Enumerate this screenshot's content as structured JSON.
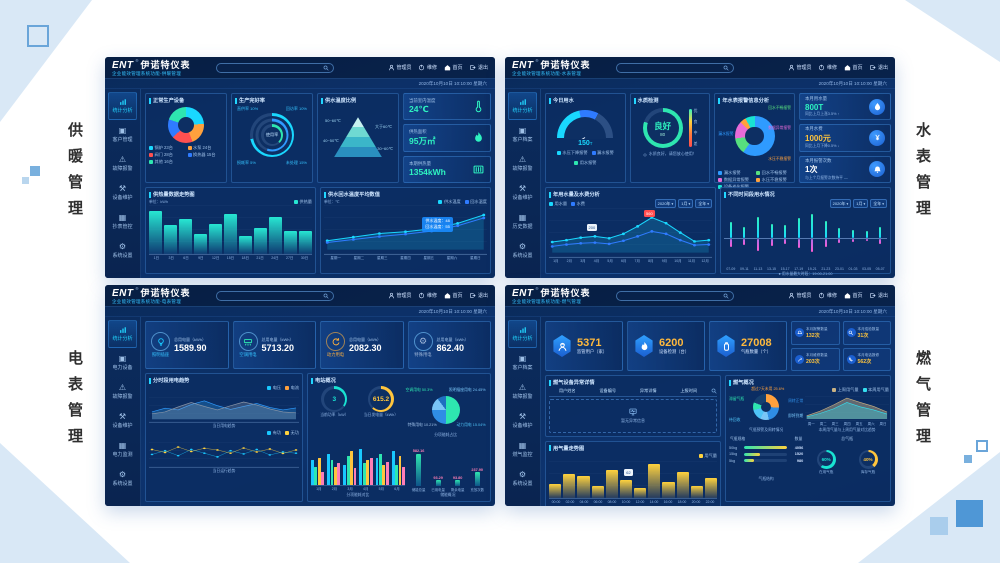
{
  "page": {
    "corner_labels": {
      "heating": "供暖管理",
      "water": "水表管理",
      "electric": "电表管理",
      "gas": "燃气管理"
    }
  },
  "common": {
    "logo": "ENT",
    "logo_mark": "®",
    "brand": "伊诺特仪表",
    "nav": {
      "admin": "管理员",
      "service": "维修",
      "home": "首页",
      "logout": "退出"
    },
    "datetime": "2020年10月10日  10:10:00  星期六"
  },
  "heating": {
    "subtitle": "企业能效管理系统功能-供暖管理",
    "sidebar": [
      "统计分析",
      "客户管理",
      "故障报警",
      "设备维护",
      "抄表管控",
      "系统设置"
    ],
    "device_donut": {
      "title": "正常生产设备",
      "slices": [
        {
          "label": "锅炉 23台",
          "v": 24,
          "color": "#19d8ff"
        },
        {
          "label": "水泵 24台",
          "v": 20,
          "color": "#ffa13d"
        },
        {
          "label": "阀门 28台",
          "v": 19,
          "color": "#ff5050"
        },
        {
          "label": "换热器 15台",
          "v": 17,
          "color": "#2f7bff"
        },
        {
          "label": "其他 16台",
          "v": 20,
          "color": "#2ee6b0"
        }
      ]
    },
    "rate": {
      "title": "生产完好率",
      "center": "使用率",
      "rings": [
        72,
        55,
        38
      ],
      "corners": [
        {
          "label": "直供率",
          "pct": "10%"
        },
        {
          "label": "回访率",
          "pct": "10%"
        },
        {
          "label": "损耗率",
          "pct": "5%"
        },
        {
          "label": "未处理",
          "pct": "15%"
        }
      ]
    },
    "pyramid": {
      "title": "供水温度比例",
      "labels": [
        "50~60℃",
        "40~50℃",
        "大于60℃",
        "30~60℃"
      ]
    },
    "cards": [
      {
        "label": "当前室内温度",
        "value": "24℃"
      },
      {
        "label": "供热面积",
        "value": "95万㎡"
      },
      {
        "label": "本期供热量",
        "value": "1354kWh"
      }
    ],
    "bar_chart": {
      "title": "供热量数据走势图",
      "unit": "单位：kWh",
      "legend": "供热量",
      "categories": [
        "1日",
        "3日",
        "6日",
        "9日",
        "12日",
        "15日",
        "18日",
        "21日",
        "24日",
        "27日",
        "30日"
      ],
      "values": [
        880,
        600,
        720,
        400,
        620,
        820,
        360,
        540,
        760,
        460,
        470
      ]
    },
    "line_chart": {
      "title": "供水回水温度平均数值",
      "unit": "单位：℃",
      "legend": [
        {
          "label": "供水温度",
          "color": "#19d8ff"
        },
        {
          "label": "回水温度",
          "color": "#2f7bff"
        }
      ],
      "x": [
        "星期一",
        "星期二",
        "星期三",
        "星期四",
        "星期五",
        "星期六",
        "星期日"
      ],
      "series": [
        {
          "color": "#19d8ff",
          "fill": "rgba(25,216,255,.18)",
          "dots": true,
          "values": [
            15,
            21,
            27,
            30,
            35,
            44,
            58
          ]
        },
        {
          "color": "#2f7bff",
          "dots": true,
          "values": [
            12,
            17,
            22,
            26,
            31,
            40,
            53
          ]
        }
      ],
      "tooltip": [
        "供水温度：48",
        "回水温度：55"
      ]
    }
  },
  "water": {
    "subtitle": "企业能效管理系统功能-水表管理",
    "sidebar": [
      "统计分析",
      "客户档案",
      "故障报警",
      "设备维护",
      "历史数据",
      "系统设置"
    ],
    "gauge": {
      "title": "今日用水",
      "value": "150",
      "unit": "T",
      "legend": [
        {
          "label": "水压下降报警",
          "color": "#19d8ff"
        },
        {
          "label": "漏水报警",
          "color": "#2f7bff"
        },
        {
          "label": "用水报警",
          "color": "#2ee6b0"
        }
      ]
    },
    "quality": {
      "title": "水质检测",
      "grade": "良好",
      "score": "80",
      "ring": 80,
      "note": "水质良好，请您放心使用！",
      "scale": [
        "优",
        "良",
        "中",
        "差"
      ]
    },
    "alarm_donut": {
      "title": "年水表报警信息分析",
      "slices": [
        {
          "label": "漏水报警",
          "v": 60,
          "color": "#2f9bff"
        },
        {
          "label": "回水不畅报警",
          "v": 13,
          "color": "#57e07f"
        },
        {
          "label": "数据异常报警",
          "v": 14,
          "color": "#e86bd8"
        },
        {
          "label": "水压不稳报警",
          "v": 5,
          "color": "#ffa13d"
        },
        {
          "label": "设备老化报警",
          "v": 8,
          "color": "#19e3d2"
        }
      ]
    },
    "cards": [
      {
        "label": "本月用水量",
        "value": "800T",
        "trend": "同比上月上涨3.5% ↑"
      },
      {
        "label": "本月水费",
        "value": "1000元",
        "trend": "同比上月下降0.5% ↓"
      },
      {
        "label": "本月报警次数",
        "value": "1次",
        "trend": "与上个月报警次数持平 —"
      }
    ],
    "year_chart": {
      "title": "年用水量及水费分析",
      "pills": [
        "2020年",
        "1月",
        "全年"
      ],
      "legend": [
        {
          "label": "用水量",
          "color": "#19d8ff"
        },
        {
          "label": "水费",
          "color": "#2f7bff"
        }
      ],
      "x": [
        "1月",
        "2月",
        "3月",
        "4月",
        "5月",
        "6月",
        "7月",
        "8月",
        "9月",
        "10月",
        "11月",
        "12月"
      ],
      "series": [
        {
          "color": "#19d8ff",
          "fill": "rgba(25,216,255,.18)",
          "dots": true,
          "values": [
            170,
            200,
            240,
            260,
            230,
            300,
            420,
            560,
            470,
            320,
            180,
            200
          ]
        },
        {
          "color": "#2f7bff",
          "dots": true,
          "values": [
            100,
            130,
            150,
            160,
            140,
            190,
            260,
            340,
            300,
            200,
            120,
            130
          ]
        }
      ],
      "tag_normal": "200",
      "tag_peak": "560"
    },
    "period_chart": {
      "title": "不同时间段用水情况",
      "pills": [
        "2020年",
        "1月",
        "全年"
      ],
      "note": "● 用水量最大时段：19:00-21:00",
      "up": [
        55,
        40,
        75,
        50,
        45,
        70,
        85,
        60,
        35,
        28,
        22,
        40
      ],
      "down": [
        30,
        22,
        45,
        28,
        20,
        35,
        50,
        30,
        18,
        12,
        10,
        20
      ],
      "x": [
        "07-09",
        "09-11",
        "11-13",
        "13-15",
        "15-17",
        "17-19",
        "19-21",
        "21-23",
        "23-01",
        "01-03",
        "03-05",
        "05-07"
      ]
    }
  },
  "electric": {
    "subtitle": "企业能效管理系统功能-电表管理",
    "sidebar": [
      "统计分析",
      "电力设备",
      "故障报警",
      "设备维护",
      "电力监测",
      "系统设置"
    ],
    "stats": [
      {
        "label": "照明插座",
        "sub": "总用电量（kWh）",
        "value": "1589.90"
      },
      {
        "label": "空调用电",
        "sub": "总用电量（kWh）",
        "value": "5713.20"
      },
      {
        "label": "动力用电",
        "sub": "总用电量（kWh）",
        "value": "2082.30"
      },
      {
        "label": "特殊用电",
        "sub": "总用电量（kWh）",
        "value": "862.40"
      }
    ],
    "trend": {
      "title": "分时段用电趋势",
      "legend1": [
        {
          "label": "电压",
          "color": "#19c8ff"
        },
        {
          "label": "电流",
          "color": "#ffa13d"
        }
      ],
      "caption1": "当日用电趋势",
      "wave": [
        {
          "color": "#2f9bff",
          "fill": "rgba(47,155,229,.3)",
          "values": [
            30,
            45,
            38,
            60,
            75,
            55,
            40,
            52,
            64,
            48,
            38,
            46
          ]
        },
        {
          "color": "#8a96a8",
          "fill": "rgba(150,160,175,.28)",
          "values": [
            22,
            30,
            50,
            68,
            52,
            38,
            55,
            70,
            58,
            42,
            30,
            26
          ]
        }
      ],
      "legend2": [
        {
          "label": "有功",
          "color": "#19c8ff"
        },
        {
          "label": "无功",
          "color": "#ffd23d"
        }
      ],
      "caption2": "当日运行趋势",
      "scatter": [
        {
          "color": "#19c8ff",
          "dots": true,
          "w": 0.3,
          "values": [
            40,
            55,
            35,
            60,
            45,
            30,
            55,
            42,
            60,
            38,
            50,
            45
          ]
        },
        {
          "color": "#ffd23d",
          "dots": true,
          "w": 0.3,
          "values": [
            60,
            48,
            70,
            52,
            65,
            58,
            45,
            66,
            50,
            62,
            44,
            58
          ]
        }
      ]
    },
    "station": {
      "title": "电站概况",
      "gauges": [
        {
          "label": "当前功率（kW）",
          "value": "3",
          "v": 35,
          "color": "#19e3d2"
        },
        {
          "label": "当日发电量（kWh）",
          "value": "615.2",
          "v": 62,
          "color": "#ffc53d"
        }
      ],
      "pie": {
        "caption": "分项能耗占比",
        "slices": [
          {
            "label": "空调用电",
            "pct": "50.3%",
            "v": 50.3,
            "color": "#2ee6b0"
          },
          {
            "label": "照明插座用电",
            "pct": "24.45%",
            "v": 24.45,
            "color": "#2f8de5"
          },
          {
            "label": "动力用电",
            "pct": "15.04%",
            "v": 15.04,
            "color": "#79c5f7"
          },
          {
            "label": "特殊用电",
            "pct": "10.21%",
            "v": 10.21,
            "color": "#1f6fc0"
          }
        ]
      },
      "gbars": {
        "caption": "分项能耗对比",
        "categories": [
          "1月",
          "2月",
          "3月",
          "4月",
          "5月",
          "6月"
        ],
        "series": [
          {
            "color": "#19c8ff",
            "values": [
              55,
              70,
              45,
              80,
              60,
              75
            ]
          },
          {
            "color": "#2ee6b0",
            "values": [
              40,
              55,
              65,
              50,
              70,
              45
            ]
          },
          {
            "color": "#ffc53d",
            "values": [
              60,
              40,
              75,
              55,
              45,
              65
            ]
          },
          {
            "color": "#ff7eb6",
            "values": [
              30,
              50,
              38,
              60,
              52,
              40
            ]
          }
        ]
      },
      "storage": {
        "caption": "储能概况",
        "rows": [
          {
            "label": "储能总量",
            "value": "582.16",
            "v": 100
          },
          {
            "label": "已用电量",
            "value": "93.29",
            "v": 18
          },
          {
            "label": "剩余电量",
            "value": "93.80",
            "v": 18
          },
          {
            "label": "充放次数",
            "value": "237.90",
            "v": 42
          }
        ]
      }
    }
  },
  "gas": {
    "subtitle": "企业能效管理系统功能-燃气管理",
    "sidebar": [
      "统计分析",
      "客户档案",
      "故障报警",
      "设备维护",
      "燃气监控",
      "系统设置"
    ],
    "stats": [
      {
        "value": "5371",
        "label": "监管用户（家）"
      },
      {
        "value": "6200",
        "label": "设备检测（台）"
      },
      {
        "value": "27008",
        "label": "气瓶数量（个）"
      }
    ],
    "minis": [
      {
        "label": "本月报警数量",
        "value": "132次"
      },
      {
        "label": "本月巡检数量",
        "value": "31次"
      },
      {
        "label": "本月维修数量",
        "value": "203次"
      },
      {
        "label": "本月电话报修",
        "value": "562次"
      }
    ],
    "abnormal": {
      "title": "燃气设备异常详情",
      "headers": [
        "用户姓名",
        "设备编号",
        "异常详情",
        "上报时间"
      ],
      "empty": "暂无异常信息"
    },
    "usage_chart": {
      "title": "用气量走势图",
      "legend": "用气量",
      "tag": "62",
      "x": [
        "00:00",
        "02:00",
        "04:00",
        "06:00",
        "08:00",
        "10:00",
        "12:00",
        "14:00",
        "16:00",
        "18:00",
        "20:00",
        "22:00"
      ],
      "values": [
        35,
        60,
        55,
        30,
        70,
        45,
        25,
        85,
        40,
        65,
        30,
        50
      ]
    },
    "overview": {
      "title": "燃气概况",
      "donut": {
        "caption": "气瓶预警及周转情况",
        "slices": [
          {
            "label": "超过7天未用",
            "pct": "25.6%",
            "v": 25.6,
            "color": "#ffa13d"
          },
          {
            "label": "周转正常",
            "pct": "20.8%",
            "v": 20.8,
            "color": "#2f8de5"
          },
          {
            "label": "即将到期",
            "pct": "10.6%",
            "v": 10.6,
            "color": "#79c5f7"
          },
          {
            "label": "待回收",
            "pct": "14.2%",
            "v": 14.2,
            "color": "#4fc3f7"
          },
          {
            "label": "滞留气瓶",
            "pct": "9.5%",
            "v": 9.5,
            "color": "#2ee6b0"
          },
          {
            "label": "其他",
            "pct": "19.3%",
            "v": 19.3,
            "color": "#16406f"
          }
        ]
      },
      "week": {
        "caption": "本周用气量与上周用气量对比趋势",
        "legend": [
          {
            "label": "上周用气量",
            "color": "#c9b283"
          },
          {
            "label": "本周用气量",
            "color": "#35e0f0"
          }
        ],
        "x": [
          "周一",
          "周二",
          "周三",
          "周四",
          "周五",
          "周六",
          "周日"
        ],
        "series": [
          {
            "color": "#c9b283",
            "fill": "rgba(201,178,131,.45)",
            "values": [
              18,
              45,
              80,
              120,
              95,
              72,
              40
            ]
          },
          {
            "color": "#35e0f0",
            "fill": "rgba(53,224,240,.35)",
            "values": [
              12,
              32,
              58,
              95,
              70,
              52,
              28
            ]
          }
        ]
      },
      "specs": {
        "col1": "气瓶规格",
        "col2": "数量",
        "caption": "气瓶结构",
        "rows": [
          {
            "label": "50kg",
            "num": 4056,
            "value": "4056"
          },
          {
            "label": "15kg",
            "num": 1520,
            "value": "1520"
          },
          {
            "label": "5kg",
            "num": 980,
            "value": "980"
          }
        ]
      },
      "gauges": {
        "title": "总气瓶",
        "items": [
          {
            "label": "在用气瓶",
            "pct": "60%",
            "v": 60,
            "color": "#19e3d2"
          },
          {
            "label": "库存气瓶",
            "pct": "40%",
            "v": 40,
            "color": "#ffc53d"
          }
        ]
      }
    }
  }
}
